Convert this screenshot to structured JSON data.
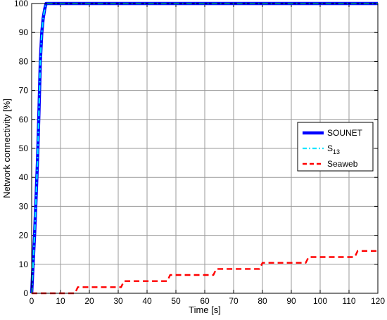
{
  "chart_data": {
    "type": "line",
    "title": "",
    "xlabel": "Time [s]",
    "ylabel": "Network connectivity [%]",
    "xlim": [
      0,
      120
    ],
    "ylim": [
      0,
      100
    ],
    "xticks": [
      0,
      10,
      20,
      30,
      40,
      50,
      60,
      70,
      80,
      90,
      100,
      110,
      120
    ],
    "yticks": [
      0,
      10,
      20,
      30,
      40,
      50,
      60,
      70,
      80,
      90,
      100
    ],
    "grid": true,
    "legend_position": "middle-right",
    "series": [
      {
        "name": "SOUNET",
        "name_main": "SOUNET",
        "name_sub": "",
        "color": "#0000ff",
        "style": "solid",
        "x": [
          0,
          0.5,
          1,
          1.5,
          2,
          2.5,
          3,
          3.5,
          4,
          4.5,
          5,
          6,
          120
        ],
        "y": [
          0,
          10,
          20,
          32,
          45,
          62,
          80,
          90,
          95,
          98,
          100,
          100,
          100
        ]
      },
      {
        "name": "S13",
        "name_main": "S",
        "name_sub": "13",
        "color": "#00e5ff",
        "style": "dashdot",
        "x": [
          0,
          0.5,
          1,
          1.5,
          2,
          2.5,
          3,
          3.5,
          4,
          4.5,
          5,
          6,
          120
        ],
        "y": [
          0,
          10,
          20,
          32,
          45,
          62,
          80,
          90,
          95,
          98,
          100,
          100,
          100
        ]
      },
      {
        "name": "Seaweb",
        "name_main": "Seaweb",
        "name_sub": "",
        "color": "#ff0000",
        "style": "dashed",
        "x": [
          0,
          15,
          16,
          31,
          32,
          47,
          48,
          63,
          64,
          79,
          80,
          95,
          96,
          112,
          113,
          120
        ],
        "y": [
          0,
          0,
          2.1,
          2.1,
          4.2,
          4.2,
          6.3,
          6.3,
          8.4,
          8.4,
          10.5,
          10.5,
          12.5,
          12.5,
          14.6,
          14.6
        ]
      }
    ]
  }
}
